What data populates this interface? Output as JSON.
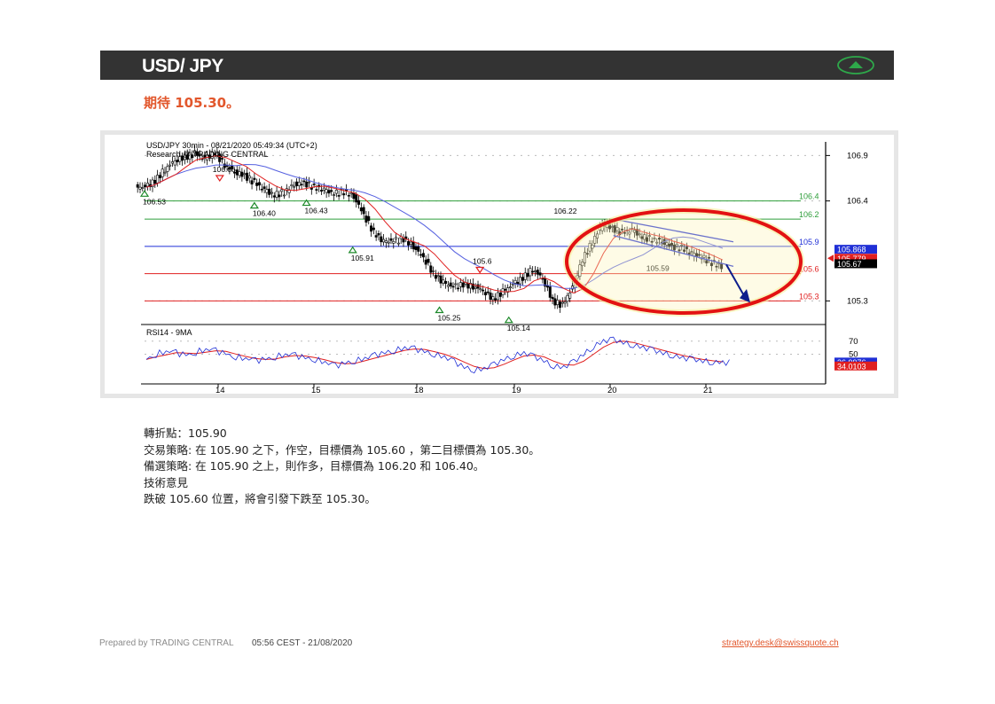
{
  "header": {
    "title": "USD/ JPY",
    "direction_icon": "up-arrow-icon",
    "icon_color": "#2ea84a"
  },
  "subtitle": "期待 105.30。",
  "chart_data": {
    "type": "candlestick",
    "header_line1": "USD/JPY 30min - 08/21/2020 05:49:34 (UTC+2)",
    "header_line2": "Research @ TRADING CENTRAL",
    "x_labels": [
      "14",
      "15",
      "18",
      "19",
      "20",
      "21"
    ],
    "y_ticks": [
      106.9,
      106.4,
      105.3
    ],
    "ylim": [
      105.05,
      107.05
    ],
    "levels": [
      {
        "value": 106.4,
        "label": "106.4",
        "color": "#2e9e3a"
      },
      {
        "value": 106.2,
        "label": "106.2",
        "color": "#2e9e3a"
      },
      {
        "value": 105.9,
        "label": "105.9",
        "color": "#1f2fd6"
      },
      {
        "value": 105.6,
        "label": "105.6",
        "color": "#e02020"
      },
      {
        "value": 105.3,
        "label": "105.3",
        "color": "#e02020"
      }
    ],
    "annotations": [
      {
        "text": "106.66",
        "x": 0.13,
        "y": 106.66,
        "marker": "red-down"
      },
      {
        "text": "106.53",
        "x": 0.0,
        "y": 106.53,
        "marker": "green-up"
      },
      {
        "text": "106.40",
        "x": 0.19,
        "y": 106.4,
        "marker": "green-up"
      },
      {
        "text": "106.43",
        "x": 0.28,
        "y": 106.43,
        "marker": "green-up"
      },
      {
        "text": "105.91",
        "x": 0.36,
        "y": 105.91,
        "marker": "green-up"
      },
      {
        "text": "105.25",
        "x": 0.51,
        "y": 105.25,
        "marker": "green-up"
      },
      {
        "text": "105.6",
        "x": 0.58,
        "y": 105.65,
        "marker": "red-down"
      },
      {
        "text": "105.14",
        "x": 0.63,
        "y": 105.14,
        "marker": "green-up"
      },
      {
        "text": "106.22",
        "x": 0.72,
        "y": 106.22,
        "marker": ""
      },
      {
        "text": "105.59",
        "x": 0.88,
        "y": 105.59,
        "marker": ""
      }
    ],
    "current_prices": [
      {
        "label": "105.868",
        "color": "#1f2fd6",
        "text_color": "#ffffff"
      },
      {
        "label": "105.779",
        "color": "#e02020",
        "text_color": "#ffffff"
      },
      {
        "label": "105.67",
        "color": "#000000",
        "text_color": "#ffffff"
      }
    ],
    "series": [
      {
        "name": "price",
        "close": [
          106.55,
          106.62,
          106.75,
          106.85,
          106.88,
          106.92,
          106.86,
          106.93,
          106.8,
          106.72,
          106.68,
          106.6,
          106.52,
          106.46,
          106.5,
          106.58,
          106.6,
          106.55,
          106.52,
          106.48,
          106.5,
          106.45,
          106.25,
          106.05,
          105.95,
          105.96,
          105.98,
          105.9,
          105.78,
          105.6,
          105.5,
          105.45,
          105.48,
          105.46,
          105.42,
          105.32,
          105.4,
          105.48,
          105.55,
          105.65,
          105.55,
          105.3,
          105.25,
          105.45,
          105.75,
          105.95,
          106.15,
          106.1,
          106.05,
          106.08,
          106.0,
          105.98,
          105.95,
          105.9,
          105.88,
          105.82,
          105.78,
          105.72,
          105.68
        ]
      },
      {
        "name": "MA fast",
        "color": "#e02020"
      },
      {
        "name": "MA slow",
        "color": "#5560e0"
      }
    ],
    "rsi": {
      "label": "RSI14 - 9MA",
      "ticks": [
        70,
        50
      ],
      "ylim": [
        10,
        90
      ],
      "current": [
        {
          "label": "36.9976",
          "color": "#1f2fd6"
        },
        {
          "label": "34.0103",
          "color": "#e02020"
        }
      ],
      "values": [
        42,
        50,
        55,
        52,
        48,
        53,
        58,
        55,
        50,
        46,
        44,
        40,
        42,
        46,
        50,
        48,
        44,
        42,
        38,
        32,
        36,
        40,
        44,
        48,
        52,
        56,
        60,
        58,
        54,
        50,
        46,
        38,
        30,
        26,
        28,
        34,
        42,
        48,
        52,
        46,
        40,
        32,
        30,
        38,
        50,
        62,
        70,
        72,
        68,
        64,
        60,
        56,
        52,
        48,
        44,
        42,
        40,
        38,
        37
      ]
    },
    "highlight": "red-ellipse",
    "projection": "dark-blue-arrow-down"
  },
  "analysis": {
    "pivot": "轉折點：105.90",
    "strategy": "交易策略: 在 105.90 之下，作空，目標價為  105.60 ，第二目標價為  105.30。",
    "alternative": "備選策略: 在 105.90 之上，則作多，目標價為  106.20 和 106.40。",
    "comment_title": "技術意見",
    "comment": "跌破  105.60 位置，將會引發下跌至  105.30。"
  },
  "footer": {
    "prepared": "Prepared by TRADING  CENTRAL",
    "timestamp": "05:56 CEST  - 21/08/2020",
    "email": "strategy.desk@swissquote.ch"
  }
}
